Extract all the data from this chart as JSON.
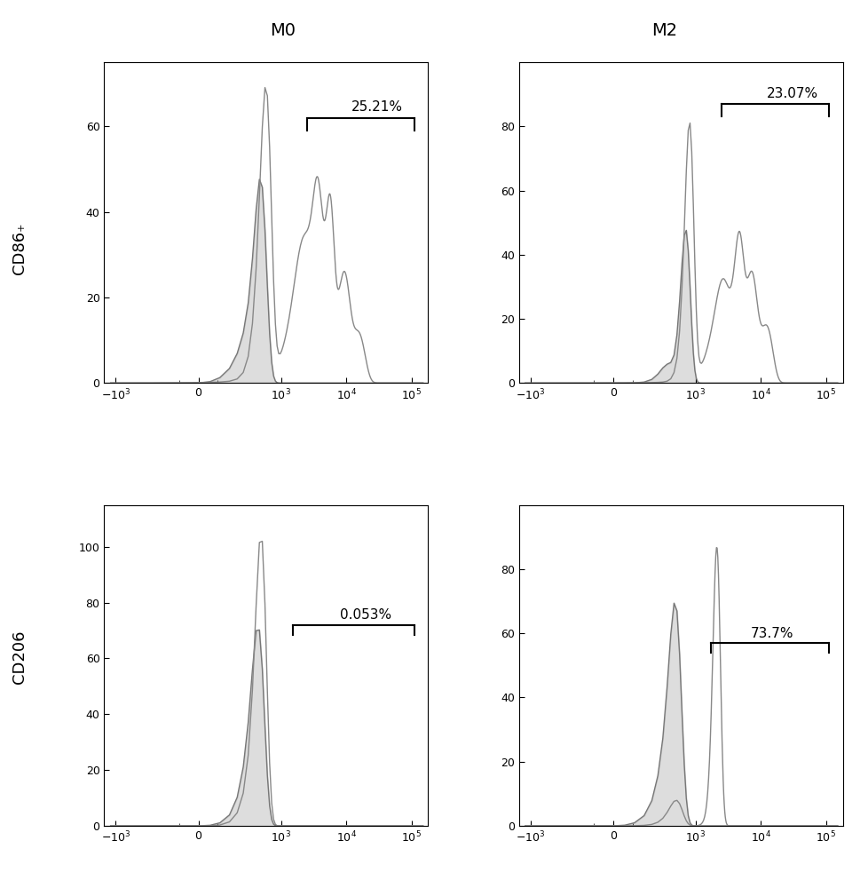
{
  "title_col1": "M0",
  "title_col2": "M2",
  "ylabel_row1": "CD86₊",
  "ylabel_row2": "CD206",
  "annotation_00": "25.21%",
  "annotation_01": "23.07%",
  "annotation_10": "0.053%",
  "annotation_11": "73.7%",
  "fill_color": "#aaaaaa",
  "fill_alpha": 0.4,
  "line_color_filled": "#777777",
  "line_color_outline": "#888888",
  "background_color": "#ffffff",
  "linthresh": 150,
  "linscale": 0.4
}
